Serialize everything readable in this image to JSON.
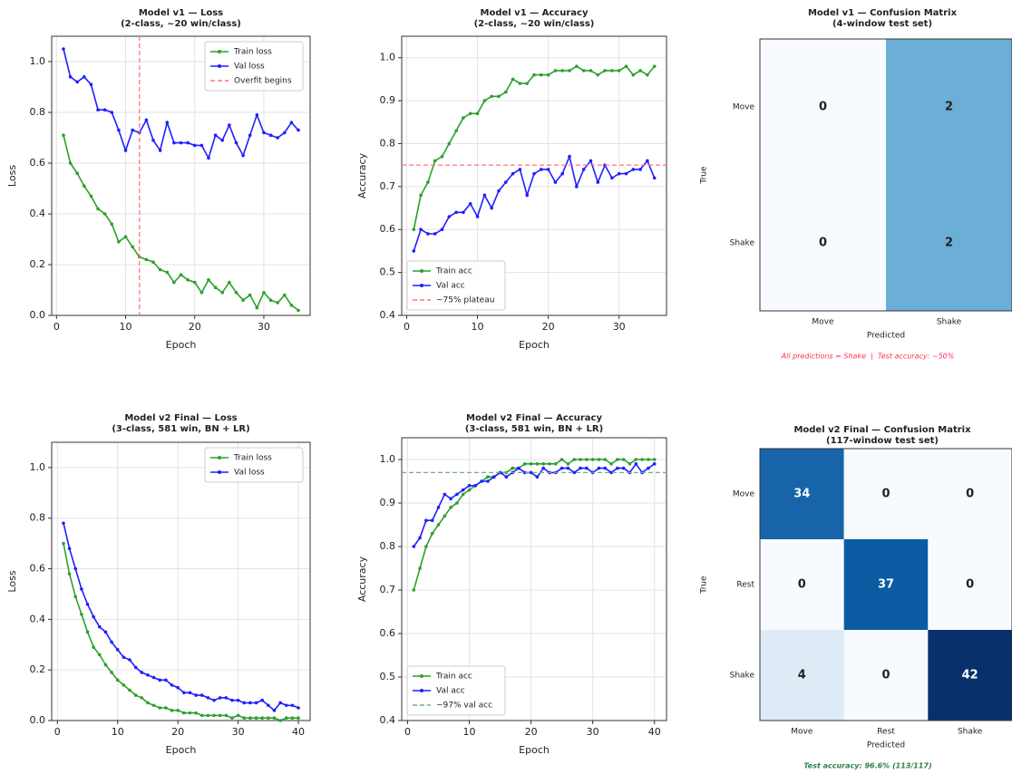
{
  "chart_data": [
    {
      "type": "line",
      "title": "Model v1 — Loss",
      "subtitle": "(2-class, ~20 win/class)",
      "xlabel": "Epoch",
      "ylabel": "Loss",
      "x": [
        1,
        2,
        3,
        4,
        5,
        6,
        7,
        8,
        9,
        10,
        11,
        12,
        13,
        14,
        15,
        16,
        17,
        18,
        19,
        20,
        21,
        22,
        23,
        24,
        25,
        26,
        27,
        28,
        29,
        30,
        31,
        32,
        33,
        34,
        35
      ],
      "series": [
        {
          "name": "Train loss",
          "color": "#2ca02c",
          "values": [
            0.71,
            0.6,
            0.56,
            0.51,
            0.47,
            0.42,
            0.4,
            0.36,
            0.29,
            0.31,
            0.27,
            0.23,
            0.22,
            0.21,
            0.18,
            0.17,
            0.13,
            0.16,
            0.14,
            0.13,
            0.09,
            0.14,
            0.11,
            0.09,
            0.13,
            0.09,
            0.06,
            0.08,
            0.03,
            0.09,
            0.06,
            0.05,
            0.08,
            0.04,
            0.02
          ]
        },
        {
          "name": "Val loss",
          "color": "#1f1fff",
          "values": [
            1.05,
            0.94,
            0.92,
            0.94,
            0.91,
            0.81,
            0.81,
            0.8,
            0.73,
            0.65,
            0.73,
            0.72,
            0.77,
            0.69,
            0.65,
            0.76,
            0.68,
            0.68,
            0.68,
            0.67,
            0.67,
            0.62,
            0.71,
            0.69,
            0.75,
            0.68,
            0.63,
            0.71,
            0.79,
            0.72,
            0.71,
            0.7,
            0.72,
            0.76,
            0.73
          ]
        }
      ],
      "vlines": [
        {
          "value": 12,
          "name": "Overfit begins",
          "color": "#ff7777"
        }
      ],
      "xlim": [
        -0.7,
        36.7
      ],
      "xticks": [
        0,
        10,
        20,
        30
      ],
      "ylim": [
        0,
        1.1
      ],
      "yticks": [
        {
          "value": 0,
          "label": "0.0"
        },
        0.2,
        0.4,
        0.6,
        0.8,
        {
          "value": 1,
          "label": "1.0"
        }
      ],
      "grid": true,
      "legend": "upper right"
    },
    {
      "type": "line",
      "title": "Model v1 — Accuracy",
      "subtitle": "(2-class, ~20 win/class)",
      "xlabel": "Epoch",
      "ylabel": "Accuracy",
      "x": [
        1,
        2,
        3,
        4,
        5,
        6,
        7,
        8,
        9,
        10,
        11,
        12,
        13,
        14,
        15,
        16,
        17,
        18,
        19,
        20,
        21,
        22,
        23,
        24,
        25,
        26,
        27,
        28,
        29,
        30,
        31,
        32,
        33,
        34,
        35
      ],
      "series": [
        {
          "name": "Train acc",
          "color": "#2ca02c",
          "values": [
            0.6,
            0.68,
            0.71,
            0.76,
            0.77,
            0.8,
            0.83,
            0.86,
            0.87,
            0.87,
            0.9,
            0.91,
            0.91,
            0.92,
            0.95,
            0.94,
            0.94,
            0.96,
            0.96,
            0.96,
            0.97,
            0.97,
            0.97,
            0.98,
            0.97,
            0.97,
            0.96,
            0.97,
            0.97,
            0.97,
            0.98,
            0.96,
            0.97,
            0.96,
            0.98
          ]
        },
        {
          "name": "Val acc",
          "color": "#1f1fff",
          "values": [
            0.55,
            0.6,
            0.59,
            0.59,
            0.6,
            0.63,
            0.64,
            0.64,
            0.66,
            0.63,
            0.68,
            0.65,
            0.69,
            0.71,
            0.73,
            0.74,
            0.68,
            0.73,
            0.74,
            0.74,
            0.71,
            0.73,
            0.77,
            0.7,
            0.74,
            0.76,
            0.71,
            0.75,
            0.72,
            0.73,
            0.73,
            0.74,
            0.74,
            0.76,
            0.72
          ]
        }
      ],
      "hlines": [
        {
          "value": 0.75,
          "name": "~75% plateau",
          "color": "#ff7777"
        }
      ],
      "xlim": [
        -0.7,
        36.7
      ],
      "xticks": [
        0,
        10,
        20,
        30
      ],
      "ylim": [
        0.4,
        1.05
      ],
      "yticks": [
        0.4,
        0.5,
        0.6,
        0.7,
        0.8,
        0.9,
        {
          "value": 1,
          "label": "1.0"
        }
      ],
      "grid": true,
      "legend": "lower left"
    },
    {
      "type": "heatmap",
      "title": "Model v1 — Confusion Matrix",
      "subtitle": "(4-window test set)",
      "xlabel": "Predicted",
      "ylabel": "True",
      "x_categories": [
        "Move",
        "Shake"
      ],
      "y_categories": [
        "Move",
        "Shake"
      ],
      "values": [
        [
          0,
          2
        ],
        [
          0,
          2
        ]
      ],
      "cell_colors": [
        [
          "#f7fbff",
          "#6baed6"
        ],
        [
          "#f7fbff",
          "#6baed6"
        ]
      ],
      "text_colors": [
        [
          "#222222",
          "#222222"
        ],
        [
          "#222222",
          "#222222"
        ]
      ],
      "annotation": "All predictions = Shake  |  Test accuracy: ~50%",
      "annotation_color": "#ff3355"
    },
    {
      "type": "line",
      "title": "Model v2 Final — Loss",
      "subtitle": "(3-class, 581 win, BN + LR)",
      "xlabel": "Epoch",
      "ylabel": "Loss",
      "x": [
        1,
        2,
        3,
        4,
        5,
        6,
        7,
        8,
        9,
        10,
        11,
        12,
        13,
        14,
        15,
        16,
        17,
        18,
        19,
        20,
        21,
        22,
        23,
        24,
        25,
        26,
        27,
        28,
        29,
        30,
        31,
        32,
        33,
        34,
        35,
        36,
        37,
        38,
        39,
        40
      ],
      "series": [
        {
          "name": "Train loss",
          "color": "#2ca02c",
          "values": [
            0.7,
            0.58,
            0.49,
            0.42,
            0.35,
            0.29,
            0.26,
            0.22,
            0.19,
            0.16,
            0.14,
            0.12,
            0.1,
            0.09,
            0.07,
            0.06,
            0.05,
            0.05,
            0.04,
            0.04,
            0.03,
            0.03,
            0.03,
            0.02,
            0.02,
            0.02,
            0.02,
            0.02,
            0.01,
            0.02,
            0.01,
            0.01,
            0.01,
            0.01,
            0.01,
            0.01,
            0.0,
            0.01,
            0.01,
            0.01
          ]
        },
        {
          "name": "Val loss",
          "color": "#1f1fff",
          "values": [
            0.78,
            0.68,
            0.6,
            0.52,
            0.46,
            0.41,
            0.37,
            0.35,
            0.31,
            0.28,
            0.25,
            0.24,
            0.21,
            0.19,
            0.18,
            0.17,
            0.16,
            0.16,
            0.14,
            0.13,
            0.11,
            0.11,
            0.1,
            0.1,
            0.09,
            0.08,
            0.09,
            0.09,
            0.08,
            0.08,
            0.07,
            0.07,
            0.07,
            0.08,
            0.06,
            0.04,
            0.07,
            0.06,
            0.06,
            0.05
          ]
        }
      ],
      "xlim": [
        -0.95,
        41.95
      ],
      "xticks": [
        0,
        10,
        20,
        30,
        40
      ],
      "ylim": [
        0,
        1.1
      ],
      "yticks": [
        {
          "value": 0,
          "label": "0.0"
        },
        0.2,
        0.4,
        0.6,
        0.8,
        {
          "value": 1,
          "label": "1.0"
        }
      ],
      "grid": true,
      "legend": "upper right"
    },
    {
      "type": "line",
      "title": "Model v2 Final — Accuracy",
      "subtitle": "(3-class, 581 win, BN + LR)",
      "xlabel": "Epoch",
      "ylabel": "Accuracy",
      "x": [
        1,
        2,
        3,
        4,
        5,
        6,
        7,
        8,
        9,
        10,
        11,
        12,
        13,
        14,
        15,
        16,
        17,
        18,
        19,
        20,
        21,
        22,
        23,
        24,
        25,
        26,
        27,
        28,
        29,
        30,
        31,
        32,
        33,
        34,
        35,
        36,
        37,
        38,
        39,
        40
      ],
      "series": [
        {
          "name": "Train acc",
          "color": "#2ca02c",
          "values": [
            0.7,
            0.75,
            0.8,
            0.83,
            0.85,
            0.87,
            0.89,
            0.9,
            0.92,
            0.93,
            0.94,
            0.95,
            0.96,
            0.96,
            0.97,
            0.97,
            0.98,
            0.98,
            0.99,
            0.99,
            0.99,
            0.99,
            0.99,
            0.99,
            1.0,
            0.99,
            1.0,
            1.0,
            1.0,
            1.0,
            1.0,
            1.0,
            0.99,
            1.0,
            1.0,
            0.99,
            1.0,
            1.0,
            1.0,
            1.0
          ]
        },
        {
          "name": "Val acc",
          "color": "#1f1fff",
          "values": [
            0.8,
            0.82,
            0.86,
            0.86,
            0.89,
            0.92,
            0.91,
            0.92,
            0.93,
            0.94,
            0.94,
            0.95,
            0.95,
            0.96,
            0.97,
            0.96,
            0.97,
            0.98,
            0.97,
            0.97,
            0.96,
            0.98,
            0.97,
            0.97,
            0.98,
            0.98,
            0.97,
            0.98,
            0.98,
            0.97,
            0.98,
            0.98,
            0.97,
            0.98,
            0.98,
            0.97,
            0.99,
            0.97,
            0.98,
            0.99
          ]
        }
      ],
      "hlines": [
        {
          "value": 0.97,
          "name": "~97% val acc",
          "color": "#77aa88"
        }
      ],
      "xlim": [
        -0.95,
        41.95
      ],
      "xticks": [
        0,
        10,
        20,
        30,
        40
      ],
      "ylim": [
        0.4,
        1.05
      ],
      "yticks": [
        0.4,
        0.5,
        0.6,
        0.7,
        0.8,
        0.9,
        {
          "value": 1,
          "label": "1.0"
        }
      ],
      "grid": true,
      "legend": "lower left"
    },
    {
      "type": "heatmap",
      "title": "Model v2 Final — Confusion Matrix",
      "subtitle": "(117-window test set)",
      "xlabel": "Predicted",
      "ylabel": "True",
      "x_categories": [
        "Move",
        "Rest",
        "Shake"
      ],
      "y_categories": [
        "Move",
        "Rest",
        "Shake"
      ],
      "values": [
        [
          34,
          0,
          0
        ],
        [
          0,
          37,
          0
        ],
        [
          4,
          0,
          42
        ]
      ],
      "cell_colors": [
        [
          "#1764ab",
          "#f7fbff",
          "#f7fbff"
        ],
        [
          "#f7fbff",
          "#0b5ba3",
          "#f7fbff"
        ],
        [
          "#deebf7",
          "#f7fbff",
          "#08306b"
        ]
      ],
      "text_colors": [
        [
          "#ffffff",
          "#222222",
          "#222222"
        ],
        [
          "#222222",
          "#ffffff",
          "#222222"
        ],
        [
          "#222222",
          "#222222",
          "#ffffff"
        ]
      ],
      "annotation": "Test accuracy: 96.6% (113/117)",
      "annotation_color": "#2e7d4f"
    }
  ]
}
